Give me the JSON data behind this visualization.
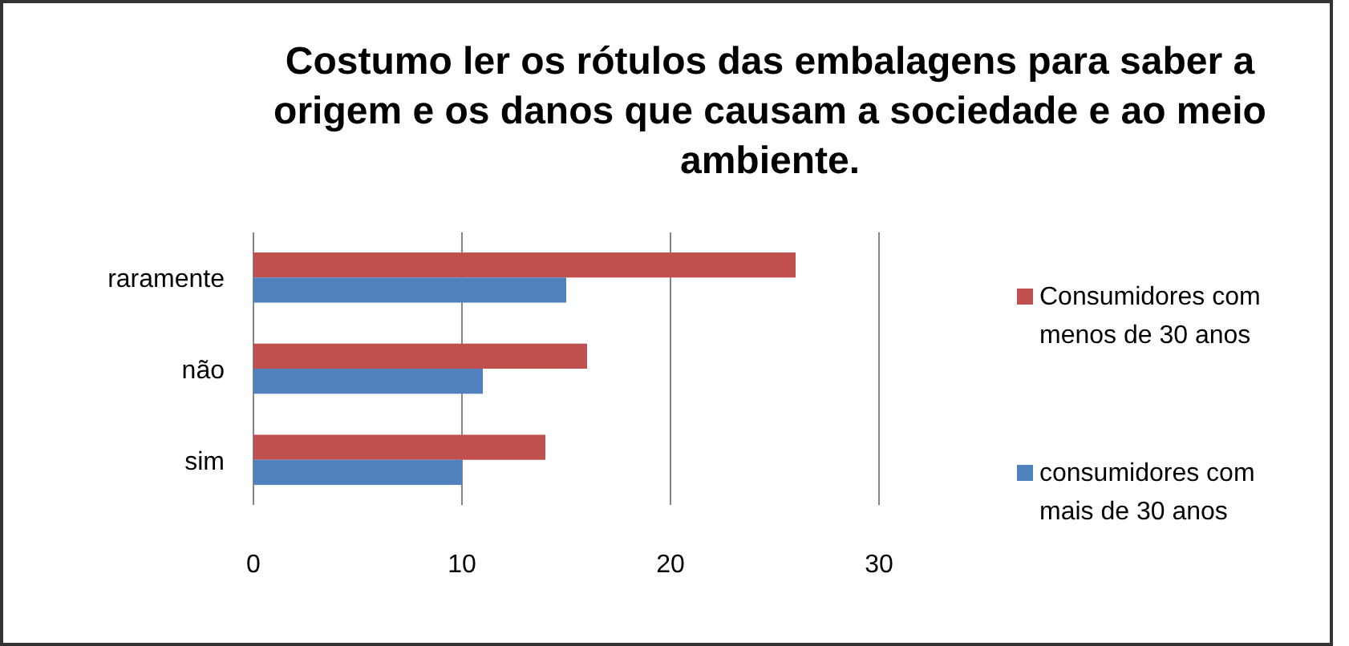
{
  "chart_data": {
    "type": "bar",
    "orientation": "horizontal",
    "title": "Costumo ler os rótulos das embalagens para saber a origem e os danos que causam a sociedade e ao meio ambiente.",
    "categories": [
      "raramente",
      "não",
      "sim"
    ],
    "series": [
      {
        "name": "Consumidores com menos de 30 anos",
        "color": "#c0504d",
        "values": [
          26,
          16,
          14
        ]
      },
      {
        "name": "consumidores com mais de 30 anos",
        "color": "#4f81bd",
        "values": [
          15,
          11,
          10
        ]
      }
    ],
    "xlim": [
      0,
      30
    ],
    "xticks": [
      0,
      10,
      20,
      30
    ],
    "grid": "x",
    "legend": "right"
  }
}
